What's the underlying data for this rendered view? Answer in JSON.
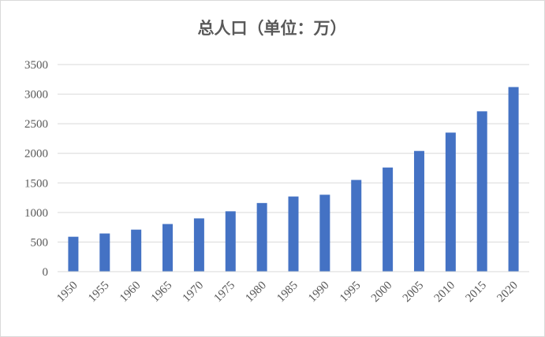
{
  "chart_data": {
    "type": "bar",
    "title": "总人口（单位：万）",
    "xlabel": "",
    "ylabel": "",
    "categories": [
      "1950",
      "1955",
      "1960",
      "1965",
      "1970",
      "1975",
      "1980",
      "1985",
      "1990",
      "1995",
      "2000",
      "2005",
      "2010",
      "2015",
      "2020"
    ],
    "values": [
      590,
      645,
      710,
      805,
      900,
      1020,
      1160,
      1270,
      1300,
      1550,
      1760,
      2040,
      2350,
      2710,
      3120
    ],
    "yticks": [
      "0",
      "500",
      "1000",
      "1500",
      "2000",
      "2500",
      "3000",
      "3500"
    ],
    "ylim": [
      0,
      3500
    ],
    "grid": true,
    "legend": "none",
    "bar_color": "#4472C4"
  }
}
